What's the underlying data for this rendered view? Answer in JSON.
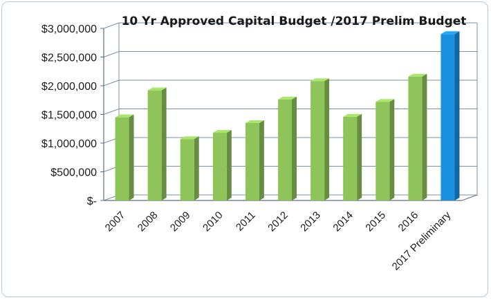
{
  "chart_data": {
    "type": "bar",
    "title": "10 Yr Approved Capital Budget /2017 Prelim Budget",
    "xlabel": "",
    "ylabel": "",
    "categories": [
      "2007",
      "2008",
      "2009",
      "2010",
      "2011",
      "2012",
      "2013",
      "2014",
      "2015",
      "2016",
      "2017 Preliminary"
    ],
    "values": [
      1450000,
      1920000,
      1070000,
      1180000,
      1350000,
      1760000,
      2080000,
      1460000,
      1720000,
      2160000,
      2900000
    ],
    "colors": [
      "#8fc45a",
      "#8fc45a",
      "#8fc45a",
      "#8fc45a",
      "#8fc45a",
      "#8fc45a",
      "#8fc45a",
      "#8fc45a",
      "#8fc45a",
      "#8fc45a",
      "#1a8fe0"
    ],
    "ylim": [
      0,
      3000000
    ],
    "yticks": [
      {
        "value": 0,
        "label": "$-"
      },
      {
        "value": 500000,
        "label": "$500,000"
      },
      {
        "value": 1000000,
        "label": "$1,000,000"
      },
      {
        "value": 1500000,
        "label": "$1,500,000"
      },
      {
        "value": 2000000,
        "label": "$2,000,000"
      },
      {
        "value": 2500000,
        "label": "$2,500,000"
      },
      {
        "value": 3000000,
        "label": "$3,000,000"
      }
    ],
    "grid": true,
    "style": "3d-bar"
  }
}
